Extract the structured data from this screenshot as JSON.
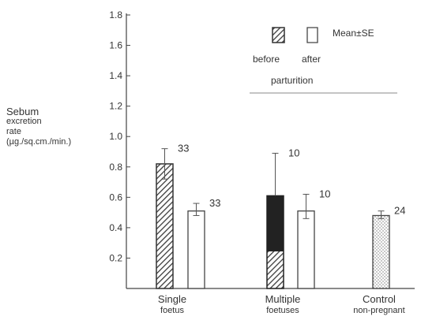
{
  "chart_data": {
    "type": "bar",
    "ylabel_lines": [
      "Sebum",
      "excretion",
      "rate",
      "(µg./sq.cm./min.)"
    ],
    "yticks": [
      "0.2",
      "0.4",
      "0.6",
      "0.8",
      "1.0",
      "1.2",
      "1.4",
      "1.6",
      "1.8"
    ],
    "ylim": [
      0,
      1.8
    ],
    "groups": [
      {
        "label_lines": [
          "Single",
          "foetus"
        ],
        "bars": [
          {
            "series": "before",
            "value": 0.82,
            "se_upper": 0.1,
            "se_lower": 0.1,
            "n": "33"
          },
          {
            "series": "after",
            "value": 0.51,
            "se_upper": 0.05,
            "se_lower": 0.03,
            "n": "33"
          }
        ]
      },
      {
        "label_lines": [
          "Multiple",
          "foetuses"
        ],
        "bars": [
          {
            "series": "before",
            "value": 0.61,
            "se_upper": 0.28,
            "se_lower": 0.0,
            "n": "10"
          },
          {
            "series": "after",
            "value": 0.51,
            "se_upper": 0.11,
            "se_lower": 0.05,
            "n": "10"
          }
        ]
      },
      {
        "label_lines": [
          "Control",
          "non-pregnant"
        ],
        "bars": [
          {
            "series": "control",
            "value": 0.48,
            "se_upper": 0.03,
            "se_lower": 0.02,
            "n": "24"
          }
        ]
      }
    ],
    "legend": {
      "before_label": "before",
      "after_label": "after",
      "stat_label": "Mean±SE",
      "caption": "parturition",
      "placement": "top-right"
    },
    "colors": {
      "axis": "#444444",
      "hatch": "#3a3a3a",
      "solid": "#222222",
      "stipple": "#777777"
    }
  }
}
